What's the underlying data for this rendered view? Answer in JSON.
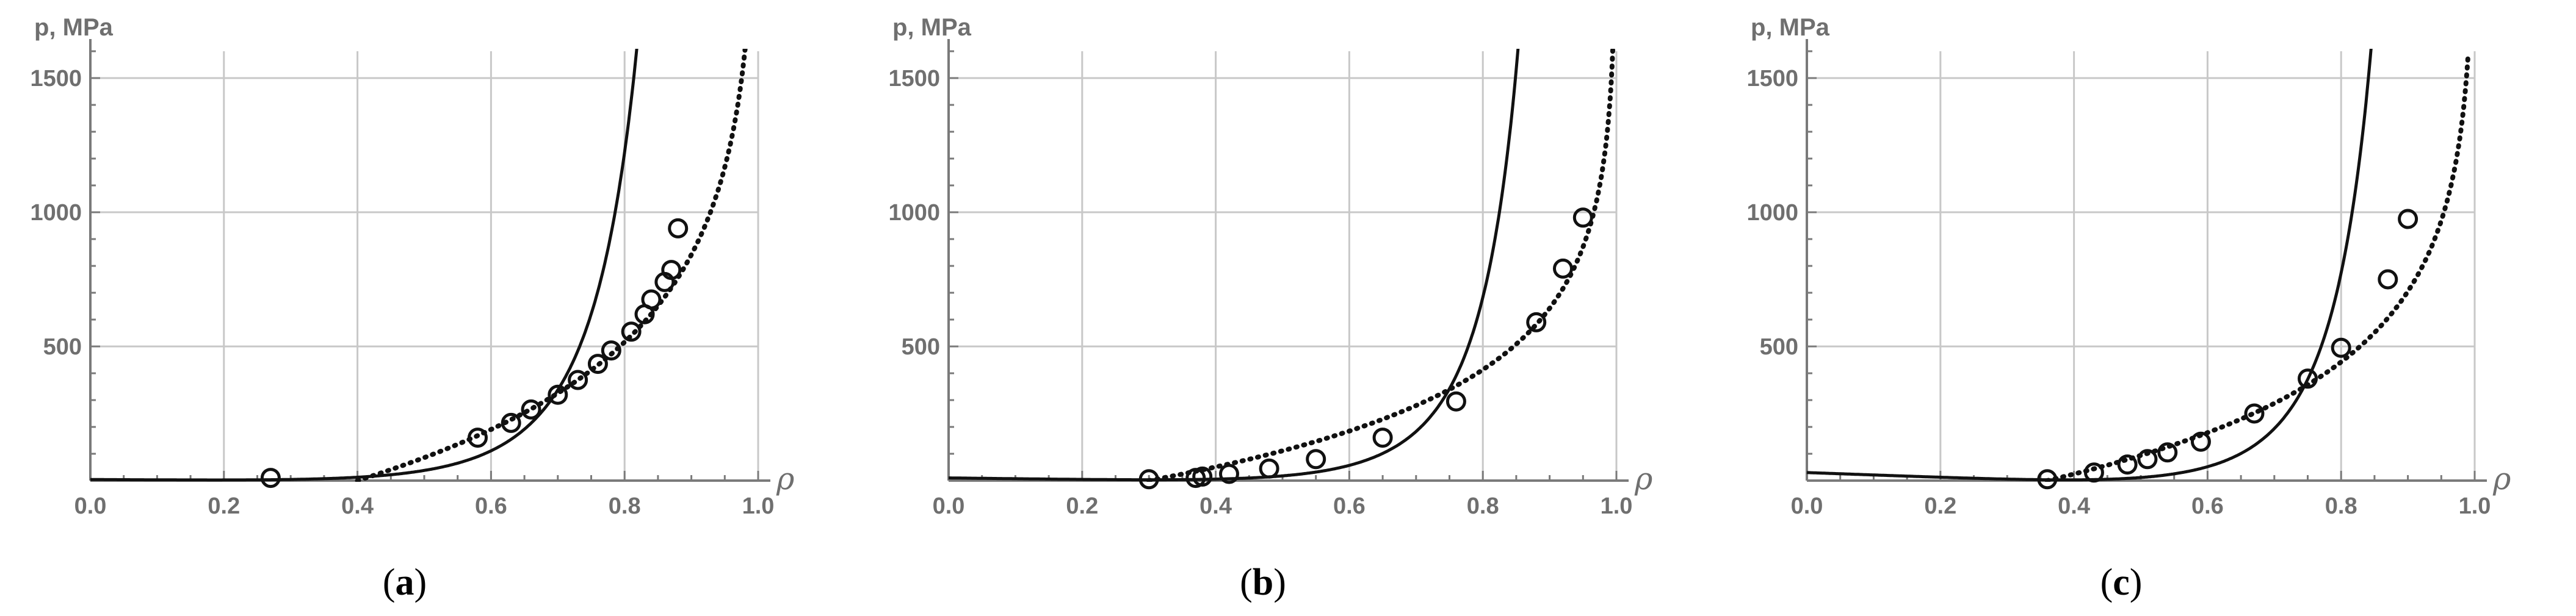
{
  "chart_data": [
    {
      "type": "scatter",
      "caption_letter": "a",
      "ylabel": "p, MPa",
      "xlabel": "ρ",
      "xlim": [
        0,
        1
      ],
      "ylim": [
        0,
        1600
      ],
      "x_ticks": [
        "0.0",
        "0.2",
        "0.4",
        "0.6",
        "0.8",
        "1.0"
      ],
      "y_ticks": [
        "500",
        "1000",
        "1500"
      ],
      "grid": true,
      "series": [
        {
          "kind": "points",
          "x": [
            0.27,
            0.58,
            0.63,
            0.66,
            0.7,
            0.73,
            0.76,
            0.78,
            0.81,
            0.83,
            0.84,
            0.86,
            0.87,
            0.88
          ],
          "y": [
            10,
            160,
            215,
            265,
            320,
            375,
            435,
            485,
            555,
            620,
            675,
            740,
            785,
            940
          ]
        },
        {
          "kind": "solid-curve",
          "model": "power",
          "y0": 4,
          "a": 1.14,
          "k": 1.25,
          "x_min": 0.0,
          "x_max": 0.975
        },
        {
          "kind": "dotted-curve",
          "model": "log",
          "b": 470,
          "x_start": 0.4,
          "x_end": 0.985
        }
      ]
    },
    {
      "type": "scatter",
      "caption_letter": "b",
      "ylabel": "p, MPa",
      "xlabel": "ρ",
      "xlim": [
        0,
        1
      ],
      "ylim": [
        0,
        1600
      ],
      "x_ticks": [
        "0.0",
        "0.2",
        "0.4",
        "0.6",
        "0.8",
        "1.0"
      ],
      "y_ticks": [
        "500",
        "1000",
        "1500"
      ],
      "grid": true,
      "series": [
        {
          "kind": "points",
          "x": [
            0.3,
            0.37,
            0.38,
            0.42,
            0.48,
            0.55,
            0.65,
            0.76,
            0.88,
            0.92,
            0.95
          ],
          "y": [
            5,
            10,
            15,
            25,
            45,
            80,
            160,
            295,
            590,
            790,
            980
          ]
        },
        {
          "kind": "solid-curve",
          "model": "power",
          "y0": 10,
          "a": 1.01,
          "k": 0.8,
          "x_min": 0.0,
          "x_max": 0.992
        },
        {
          "kind": "dotted-curve",
          "model": "log",
          "b": 330,
          "x_start": 0.3,
          "x_end": 0.995
        }
      ]
    },
    {
      "type": "scatter",
      "caption_letter": "c",
      "ylabel": "p, MPa",
      "xlabel": "ρ",
      "xlim": [
        0,
        1
      ],
      "ylim": [
        0,
        1600
      ],
      "x_ticks": [
        "0.0",
        "0.2",
        "0.4",
        "0.6",
        "0.8",
        "1.0"
      ],
      "y_ticks": [
        "500",
        "1000",
        "1500"
      ],
      "grid": true,
      "series": [
        {
          "kind": "points",
          "x": [
            0.36,
            0.43,
            0.48,
            0.51,
            0.54,
            0.59,
            0.67,
            0.75,
            0.8,
            0.87,
            0.9
          ],
          "y": [
            5,
            30,
            60,
            80,
            105,
            145,
            250,
            380,
            495,
            750,
            975
          ]
        },
        {
          "kind": "solid-curve",
          "model": "power",
          "y0": 30,
          "a": 1.05,
          "k": 0.9,
          "x_min": 0.0,
          "x_max": 0.985
        },
        {
          "kind": "dotted-curve",
          "model": "log",
          "b": 380,
          "x_start": 0.36,
          "x_end": 0.99
        }
      ]
    }
  ]
}
